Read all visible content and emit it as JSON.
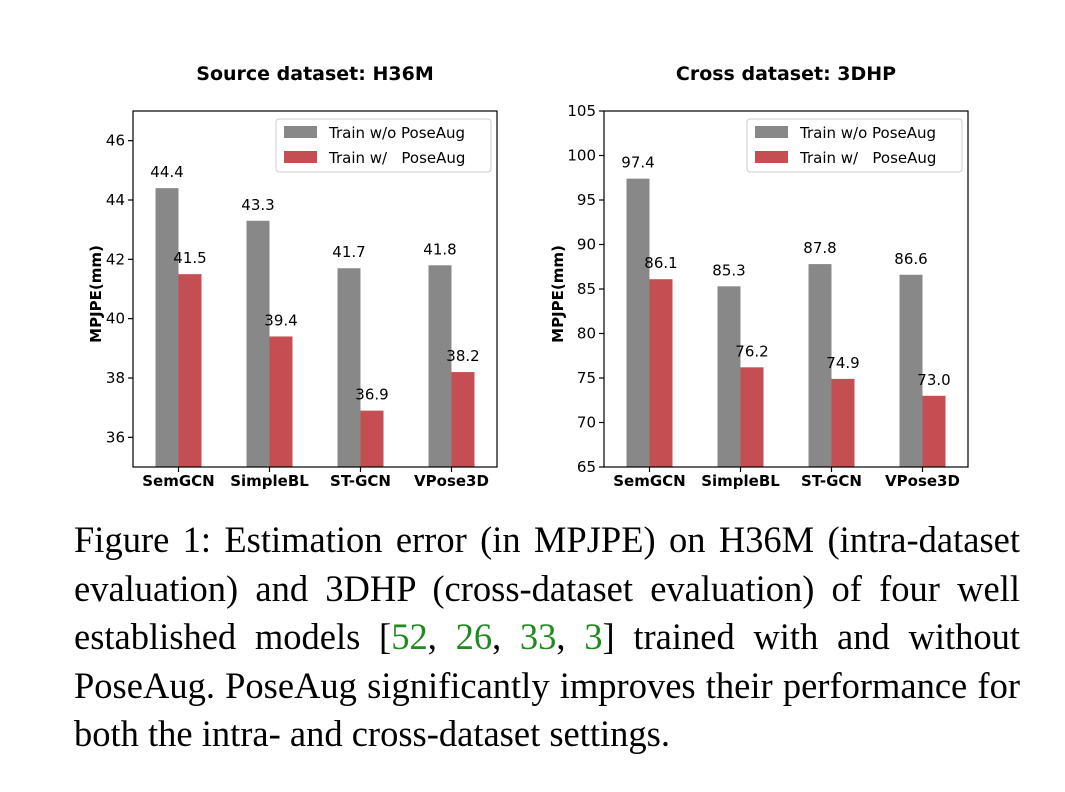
{
  "chart_data": [
    {
      "type": "bar",
      "title": "Source dataset: H36M",
      "ylabel": "MPJPE(mm)",
      "categories": [
        "SemGCN",
        "SimpleBL",
        "ST-GCN",
        "VPose3D"
      ],
      "series": [
        {
          "name": "Train w/o PoseAug",
          "color": "#888888",
          "values": [
            44.4,
            43.3,
            41.7,
            41.8
          ],
          "labels": [
            "44.4",
            "43.3",
            "41.7",
            "41.8"
          ]
        },
        {
          "name": "Train w/   PoseAug",
          "color": "#c44e52",
          "values": [
            41.5,
            39.4,
            36.9,
            38.2
          ],
          "labels": [
            "41.5",
            "39.4",
            "36.9",
            "38.2"
          ]
        }
      ],
      "ylim": [
        35,
        47
      ],
      "yticks": [
        36,
        38,
        40,
        42,
        44,
        46
      ],
      "ytick_labels": [
        "36",
        "38",
        "40",
        "42",
        "44",
        "46"
      ],
      "grid": false,
      "legend": "top-right"
    },
    {
      "type": "bar",
      "title": "Cross dataset: 3DHP",
      "ylabel": "MPJPE(mm)",
      "categories": [
        "SemGCN",
        "SimpleBL",
        "ST-GCN",
        "VPose3D"
      ],
      "series": [
        {
          "name": "Train w/o PoseAug",
          "color": "#888888",
          "values": [
            97.4,
            85.3,
            87.8,
            86.6
          ],
          "labels": [
            "97.4",
            "85.3",
            "87.8",
            "86.6"
          ]
        },
        {
          "name": "Train w/   PoseAug",
          "color": "#c44e52",
          "values": [
            86.1,
            76.2,
            74.9,
            73.0
          ],
          "labels": [
            "86.1",
            "76.2",
            "74.9",
            "73.0"
          ]
        }
      ],
      "ylim": [
        65,
        105
      ],
      "yticks": [
        65,
        70,
        75,
        80,
        85,
        90,
        95,
        100,
        105
      ],
      "ytick_labels": [
        "65",
        "70",
        "75",
        "80",
        "85",
        "90",
        "95",
        "100",
        "105"
      ],
      "grid": false,
      "legend": "top-right"
    }
  ],
  "caption": {
    "lead": "Figure 1:  Estimation error (in MPJPE) on H36M (intra-dataset evaluation) and 3DHP (cross-dataset evaluation) of four well established models [",
    "ref1": "52",
    "sep1": ", ",
    "ref2": "26",
    "sep2": ", ",
    "ref3": "33",
    "sep3": ", ",
    "ref4": "3",
    "tail": "] trained with and without PoseAug. PoseAug significantly improves their performance for both the intra- and cross-dataset settings."
  }
}
